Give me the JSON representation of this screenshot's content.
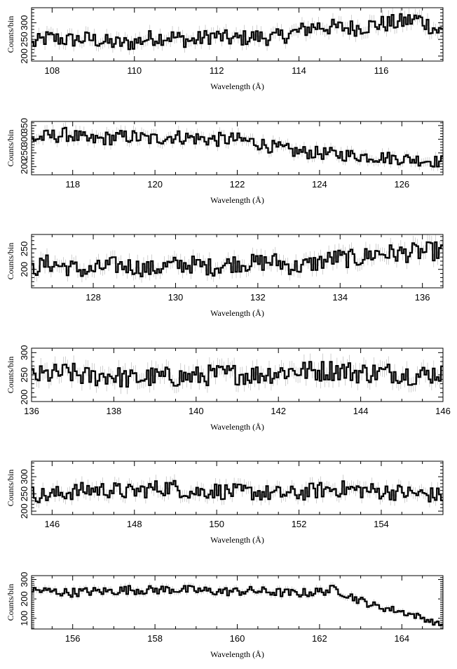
{
  "chart_data": [
    {
      "type": "line",
      "xlabel": "Wavelength (Å)",
      "ylabel": "Counts/bin",
      "xlim": [
        107.5,
        117.5
      ],
      "ylim": [
        185,
        345
      ],
      "xticks": [
        108,
        110,
        112,
        114,
        116
      ],
      "yticks": [
        200,
        250,
        300
      ],
      "series": [
        {
          "x": [
            107.5,
            107.9,
            108.4,
            108.9,
            109.4,
            109.9,
            110.4,
            110.9,
            111.4,
            111.9,
            112.4,
            112.9,
            113.4,
            113.9,
            114.4,
            114.9,
            115.4,
            115.9,
            116.4,
            116.9,
            117.4
          ],
          "values": [
            235,
            255,
            248,
            252,
            240,
            238,
            255,
            258,
            245,
            262,
            250,
            258,
            255,
            270,
            290,
            285,
            285,
            295,
            300,
            312,
            275
          ]
        }
      ]
    },
    {
      "type": "line",
      "xlabel": "Wavelength (Å)",
      "ylabel": "Counts/bin",
      "xlim": [
        117,
        127
      ],
      "ylim": [
        170,
        365
      ],
      "xticks": [
        118,
        120,
        122,
        124,
        126
      ],
      "yticks": [
        200,
        250,
        300,
        350
      ],
      "series": [
        {
          "x": [
            117.0,
            117.4,
            117.9,
            118.4,
            118.9,
            119.4,
            119.9,
            120.4,
            120.9,
            121.4,
            121.9,
            122.4,
            122.9,
            123.4,
            123.9,
            124.4,
            124.9,
            125.4,
            125.9,
            126.4,
            126.9
          ],
          "values": [
            300,
            310,
            318,
            295,
            305,
            310,
            300,
            310,
            305,
            298,
            300,
            290,
            270,
            255,
            250,
            245,
            240,
            235,
            230,
            225,
            218
          ]
        }
      ]
    },
    {
      "type": "line",
      "xlabel": "Wavelength (Å)",
      "ylabel": "Counts/bin",
      "xlim": [
        126.5,
        136.5
      ],
      "ylim": [
        155,
        285
      ],
      "xticks": [
        128,
        130,
        132,
        134,
        136
      ],
      "yticks": [
        200,
        250
      ],
      "series": [
        {
          "x": [
            126.5,
            126.9,
            127.4,
            127.9,
            128.4,
            128.9,
            129.4,
            129.9,
            130.4,
            130.9,
            131.4,
            131.9,
            132.4,
            132.9,
            133.4,
            133.9,
            134.4,
            134.9,
            135.4,
            135.9,
            136.4
          ],
          "values": [
            200,
            215,
            205,
            195,
            210,
            208,
            200,
            210,
            212,
            205,
            215,
            215,
            220,
            205,
            215,
            228,
            225,
            240,
            238,
            242,
            245
          ]
        }
      ]
    },
    {
      "type": "line",
      "xlabel": "Wavelength (Å)",
      "ylabel": "Counts/bin",
      "xlim": [
        136,
        146
      ],
      "ylim": [
        190,
        310
      ],
      "xticks": [
        136,
        138,
        140,
        142,
        144,
        146
      ],
      "yticks": [
        200,
        250,
        300
      ],
      "series": [
        {
          "x": [
            136.0,
            136.4,
            136.9,
            137.4,
            137.9,
            138.4,
            138.9,
            139.4,
            139.9,
            140.4,
            140.9,
            141.4,
            141.9,
            142.4,
            142.9,
            143.4,
            143.9,
            144.4,
            144.9,
            145.4,
            145.9
          ],
          "values": [
            245,
            250,
            255,
            245,
            250,
            240,
            245,
            245,
            245,
            250,
            252,
            250,
            255,
            260,
            258,
            262,
            255,
            255,
            255,
            248,
            255
          ]
        }
      ]
    },
    {
      "type": "line",
      "xlabel": "Wavelength (Å)",
      "ylabel": "Counts/bin",
      "xlim": [
        145.5,
        155.5
      ],
      "ylim": [
        190,
        345
      ],
      "xticks": [
        146,
        148,
        150,
        152,
        154
      ],
      "yticks": [
        200,
        250,
        300
      ],
      "series": [
        {
          "x": [
            145.5,
            145.9,
            146.4,
            146.9,
            147.4,
            147.9,
            148.4,
            148.9,
            149.4,
            149.9,
            150.4,
            150.9,
            151.4,
            151.9,
            152.4,
            152.9,
            153.4,
            153.9,
            154.4,
            154.9,
            155.4
          ],
          "values": [
            250,
            245,
            255,
            262,
            262,
            255,
            265,
            270,
            255,
            260,
            255,
            255,
            250,
            250,
            260,
            265,
            262,
            258,
            255,
            250,
            245
          ]
        }
      ]
    },
    {
      "type": "line",
      "xlabel": "Wavelength (Å)",
      "ylabel": "Counts/bin",
      "xlim": [
        155,
        165
      ],
      "ylim": [
        45,
        320
      ],
      "xticks": [
        156,
        158,
        160,
        162,
        164
      ],
      "yticks": [
        100,
        200,
        300
      ],
      "series": [
        {
          "x": [
            155.0,
            155.4,
            155.9,
            156.4,
            156.9,
            157.4,
            157.9,
            158.4,
            158.9,
            159.4,
            159.9,
            160.4,
            160.9,
            161.4,
            161.9,
            162.4,
            162.9,
            163.4,
            163.9,
            164.4,
            164.9
          ],
          "values": [
            245,
            240,
            232,
            238,
            240,
            248,
            245,
            250,
            245,
            240,
            238,
            242,
            235,
            228,
            235,
            250,
            200,
            160,
            140,
            110,
            70
          ]
        }
      ]
    }
  ]
}
